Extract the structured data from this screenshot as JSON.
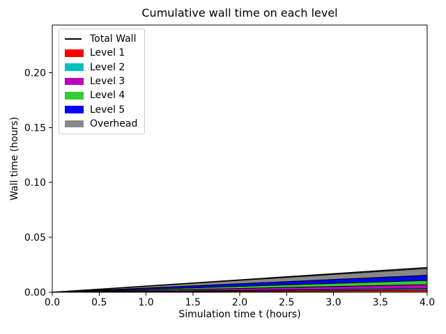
{
  "figure": {
    "background": "#ffffff"
  },
  "chart_data": {
    "type": "area",
    "title": "Cumulative wall time on each level",
    "xlabel": "Simulation time t (hours)",
    "ylabel": "Wall time (hours)",
    "xlim": [
      0.0,
      4.0
    ],
    "ylim": [
      0.0,
      0.2434
    ],
    "grid": false,
    "x_ticks": {
      "values": [
        0.0,
        0.5,
        1.0,
        1.5,
        2.0,
        2.5,
        3.0,
        3.5,
        4.0
      ],
      "labels": [
        "0.0",
        "0.5",
        "1.0",
        "1.5",
        "2.0",
        "2.5",
        "3.0",
        "3.5",
        "4.0"
      ]
    },
    "y_ticks": {
      "values": [
        0.0,
        0.05,
        0.1,
        0.15,
        0.2
      ],
      "labels": [
        "0.00",
        "0.05",
        "0.10",
        "0.15",
        "0.20"
      ]
    },
    "x": [
      0.0,
      4.0
    ],
    "stack_edge_color": "#000000",
    "stack_series": [
      {
        "name": "Level 1",
        "color": "#ff0000",
        "values": [
          0.0,
          0.002
        ]
      },
      {
        "name": "Level 2",
        "color": "#00bfbf",
        "values": [
          0.0,
          0.0013
        ]
      },
      {
        "name": "Level 3",
        "color": "#bf00bf",
        "values": [
          0.0,
          0.0037
        ]
      },
      {
        "name": "Level 4",
        "color": "#32cd32",
        "values": [
          0.0,
          0.0038
        ]
      },
      {
        "name": "Level 5",
        "color": "#0000ff",
        "values": [
          0.0,
          0.0047
        ]
      },
      {
        "name": "Overhead",
        "color": "#888888",
        "values": [
          0.0,
          0.0061
        ]
      }
    ],
    "line_series": [
      {
        "name": "Total Wall",
        "color": "#000000",
        "values": [
          0.0,
          0.0225
        ]
      }
    ],
    "legend": {
      "position": "upper left",
      "items": [
        {
          "label": "Total Wall",
          "swatch": "line",
          "color": "#000000"
        },
        {
          "label": "Level 1",
          "swatch": "patch",
          "color": "#ff0000"
        },
        {
          "label": "Level 2",
          "swatch": "patch",
          "color": "#00bfbf"
        },
        {
          "label": "Level 3",
          "swatch": "patch",
          "color": "#bf00bf"
        },
        {
          "label": "Level 4",
          "swatch": "patch",
          "color": "#32cd32"
        },
        {
          "label": "Level 5",
          "swatch": "patch",
          "color": "#0000ff"
        },
        {
          "label": "Overhead",
          "swatch": "patch",
          "color": "#888888"
        }
      ]
    }
  }
}
